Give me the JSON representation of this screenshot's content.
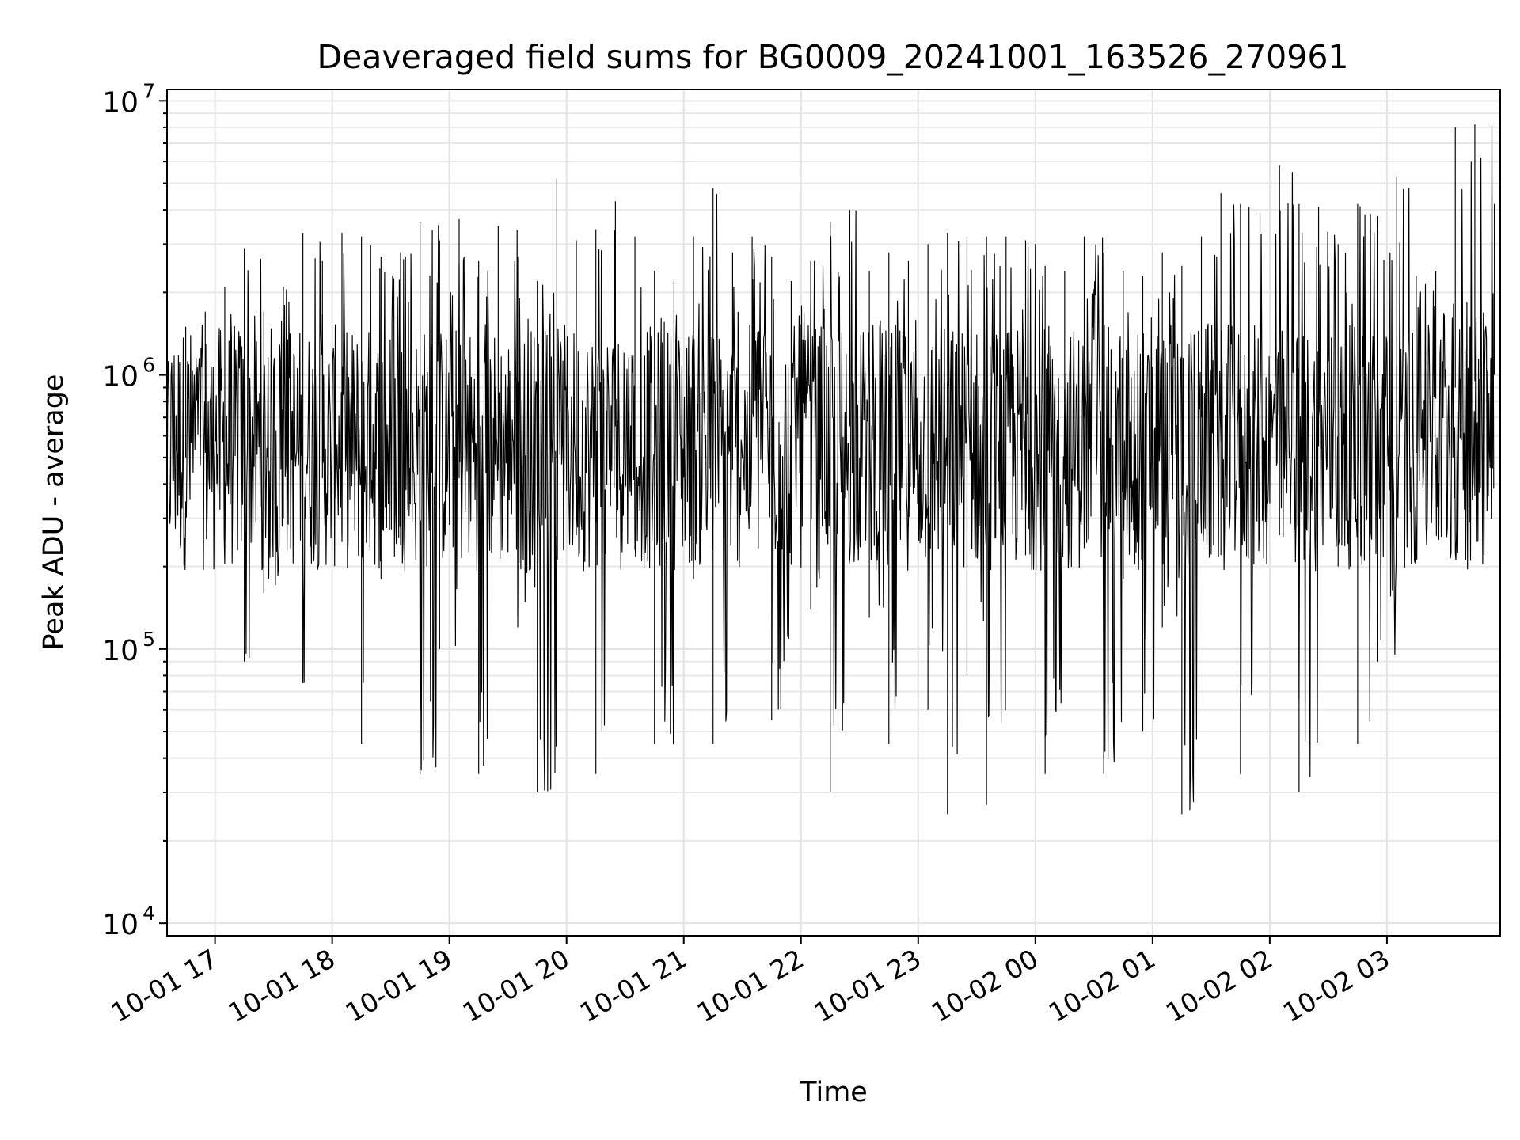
{
  "chart_data": {
    "type": "line",
    "title": "Deaveraged field sums for BG0009_20241001_163526_270961",
    "xlabel": "Time",
    "ylabel": "Peak ADU - average",
    "yscale": "log",
    "grid": true,
    "ylim": [
      9000,
      11000000
    ],
    "xlim": [
      "2024-10-01 16:35:26",
      "2024-10-02 03:58:00"
    ],
    "x_ticks": [
      {
        "label": "10-01 17",
        "time": "2024-10-01 17:00"
      },
      {
        "label": "10-01 18",
        "time": "2024-10-01 18:00"
      },
      {
        "label": "10-01 19",
        "time": "2024-10-01 19:00"
      },
      {
        "label": "10-01 20",
        "time": "2024-10-01 20:00"
      },
      {
        "label": "10-01 21",
        "time": "2024-10-01 21:00"
      },
      {
        "label": "10-01 22",
        "time": "2024-10-01 22:00"
      },
      {
        "label": "10-01 23",
        "time": "2024-10-01 23:00"
      },
      {
        "label": "10-02 00",
        "time": "2024-10-02 00:00"
      },
      {
        "label": "10-02 01",
        "time": "2024-10-02 01:00"
      },
      {
        "label": "10-02 02",
        "time": "2024-10-02 02:00"
      },
      {
        "label": "10-02 03",
        "time": "2024-10-02 03:00"
      }
    ],
    "y_ticks": [
      {
        "base": "10",
        "exp": "4",
        "value": 10000
      },
      {
        "base": "10",
        "exp": "5",
        "value": 100000
      },
      {
        "base": "10",
        "exp": "6",
        "value": 1000000
      },
      {
        "base": "10",
        "exp": "7",
        "value": 10000000
      }
    ],
    "series": [
      {
        "color": "#000000",
        "x": [
          "2024-10-01 16:35",
          "2024-10-01 16:45",
          "2024-10-01 16:55",
          "2024-10-01 17:05",
          "2024-10-01 17:15",
          "2024-10-01 17:25",
          "2024-10-01 17:35",
          "2024-10-01 17:45",
          "2024-10-01 17:55",
          "2024-10-01 18:05",
          "2024-10-01 18:15",
          "2024-10-01 18:25",
          "2024-10-01 18:35",
          "2024-10-01 18:45",
          "2024-10-01 18:55",
          "2024-10-01 19:05",
          "2024-10-01 19:15",
          "2024-10-01 19:25",
          "2024-10-01 19:35",
          "2024-10-01 19:45",
          "2024-10-01 19:55",
          "2024-10-01 20:05",
          "2024-10-01 20:15",
          "2024-10-01 20:25",
          "2024-10-01 20:35",
          "2024-10-01 20:45",
          "2024-10-01 20:55",
          "2024-10-01 21:05",
          "2024-10-01 21:15",
          "2024-10-01 21:25",
          "2024-10-01 21:35",
          "2024-10-01 21:45",
          "2024-10-01 21:55",
          "2024-10-01 22:05",
          "2024-10-01 22:15",
          "2024-10-01 22:25",
          "2024-10-01 22:35",
          "2024-10-01 22:45",
          "2024-10-01 22:55",
          "2024-10-01 23:05",
          "2024-10-01 23:15",
          "2024-10-01 23:25",
          "2024-10-01 23:35",
          "2024-10-01 23:45",
          "2024-10-01 23:55",
          "2024-10-02 00:05",
          "2024-10-02 00:15",
          "2024-10-02 00:25",
          "2024-10-02 00:35",
          "2024-10-02 00:45",
          "2024-10-02 00:55",
          "2024-10-02 01:05",
          "2024-10-02 01:15",
          "2024-10-02 01:25",
          "2024-10-02 01:35",
          "2024-10-02 01:45",
          "2024-10-02 01:55",
          "2024-10-02 02:05",
          "2024-10-02 02:15",
          "2024-10-02 02:25",
          "2024-10-02 02:35",
          "2024-10-02 02:45",
          "2024-10-02 02:55",
          "2024-10-02 03:05",
          "2024-10-02 03:15",
          "2024-10-02 03:25",
          "2024-10-02 03:35",
          "2024-10-02 03:45",
          "2024-10-02 03:55"
        ],
        "values": [
          550000,
          500000,
          520000,
          260000,
          90000,
          160000,
          300000,
          75000,
          420000,
          260000,
          45000,
          180000,
          240000,
          35000,
          100000,
          420000,
          35000,
          450000,
          120000,
          30000,
          500000,
          260000,
          35000,
          650000,
          230000,
          45000,
          700000,
          180000,
          45000,
          450000,
          720000,
          55000,
          550000,
          140000,
          30000,
          650000,
          130000,
          45000,
          280000,
          60000,
          25000,
          80000,
          27000,
          950000,
          220000,
          35000,
          800000,
          700000,
          35000,
          180000,
          50000,
          120000,
          25000,
          700000,
          220000,
          35000,
          600000,
          260000,
          30000,
          550000,
          200000,
          45000,
          90000,
          350000,
          520000,
          820000,
          900000,
          950000,
          1000000
        ],
        "peaks": [
          1400000,
          1500000,
          1700000,
          2100000,
          2900000,
          1700000,
          2100000,
          3300000,
          2600000,
          3300000,
          3200000,
          2700000,
          2800000,
          3600000,
          3100000,
          3700000,
          2600000,
          3500000,
          2700000,
          2200000,
          5200000,
          3100000,
          3400000,
          4300000,
          3200000,
          2400000,
          2200000,
          3200000,
          4800000,
          2800000,
          3200000,
          2700000,
          2200000,
          2600000,
          3600000,
          4000000,
          2400000,
          2800000,
          2600000,
          3000000,
          3300000,
          3200000,
          3200000,
          3200000,
          3100000,
          2500000,
          2400000,
          3200000,
          2800000,
          2400000,
          2300000,
          2800000,
          2500000,
          3200000,
          4600000,
          4200000,
          3900000,
          5800000,
          4200000,
          4100000,
          3000000,
          4200000,
          3800000,
          5300000,
          2300000,
          2400000,
          8000000,
          8200000,
          4200000
        ]
      }
    ]
  }
}
